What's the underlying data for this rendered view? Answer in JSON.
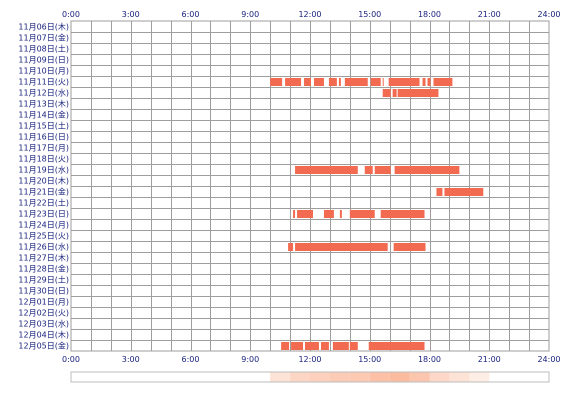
{
  "chart_data": {
    "type": "timeline",
    "title": "",
    "xlabel": "",
    "ylabel": "",
    "xlim": [
      0,
      24
    ],
    "x_ticks": [
      "0:00",
      "3:00",
      "6:00",
      "9:00",
      "12:00",
      "15:00",
      "18:00",
      "21:00",
      "24:00"
    ],
    "grid": true,
    "bar_color": "#f26a4f",
    "bar_color_light": "#f4835a",
    "grid_color": "#9e9e9e",
    "label_color": "#1a237e",
    "rows": [
      {
        "label": "11月06日(木)",
        "intervals": []
      },
      {
        "label": "11月07日(金)",
        "intervals": []
      },
      {
        "label": "11月08日(土)",
        "intervals": []
      },
      {
        "label": "11月09日(日)",
        "intervals": []
      },
      {
        "label": "11月10日(月)",
        "intervals": []
      },
      {
        "label": "11月11日(火)",
        "intervals": [
          [
            10.0,
            10.6
          ],
          [
            10.75,
            11.55
          ],
          [
            11.7,
            12.05
          ],
          [
            12.2,
            12.7
          ],
          [
            12.95,
            13.35
          ],
          [
            13.45,
            13.55
          ],
          [
            13.75,
            14.9
          ],
          [
            15.05,
            15.55
          ],
          [
            15.65,
            15.7
          ],
          [
            15.95,
            17.5
          ],
          [
            17.65,
            17.8
          ],
          [
            17.9,
            18.05
          ],
          [
            18.2,
            19.15
          ]
        ]
      },
      {
        "label": "11月12日(水)",
        "intervals": [
          [
            15.65,
            16.05
          ],
          [
            16.15,
            16.35
          ],
          [
            16.4,
            18.45
          ]
        ]
      },
      {
        "label": "11月13日(木)",
        "intervals": []
      },
      {
        "label": "11月14日(金)",
        "intervals": []
      },
      {
        "label": "11月15日(土)",
        "intervals": []
      },
      {
        "label": "11月16日(日)",
        "intervals": []
      },
      {
        "label": "11月17日(月)",
        "intervals": []
      },
      {
        "label": "11月18日(火)",
        "intervals": []
      },
      {
        "label": "11月19日(水)",
        "intervals": [
          [
            11.25,
            14.4
          ],
          [
            14.75,
            15.15
          ],
          [
            15.25,
            16.05
          ],
          [
            16.25,
            19.5
          ]
        ]
      },
      {
        "label": "11月20日(木)",
        "intervals": []
      },
      {
        "label": "11月21日(金)",
        "intervals": [
          [
            18.35,
            18.65
          ],
          [
            18.75,
            20.7
          ]
        ]
      },
      {
        "label": "11月22日(土)",
        "intervals": []
      },
      {
        "label": "11月23日(日)",
        "intervals": [
          [
            11.15,
            11.25
          ],
          [
            11.35,
            12.15
          ],
          [
            12.7,
            13.2
          ],
          [
            13.5,
            13.6
          ],
          [
            14.0,
            15.25
          ],
          [
            15.55,
            17.75
          ]
        ]
      },
      {
        "label": "11月24日(月)",
        "intervals": []
      },
      {
        "label": "11月25日(火)",
        "intervals": []
      },
      {
        "label": "11月26日(水)",
        "intervals": [
          [
            10.9,
            11.15
          ],
          [
            11.25,
            15.9
          ],
          [
            16.2,
            17.8
          ]
        ]
      },
      {
        "label": "11月27日(木)",
        "intervals": []
      },
      {
        "label": "11月28日(金)",
        "intervals": []
      },
      {
        "label": "11月29日(土)",
        "intervals": []
      },
      {
        "label": "11月30日(日)",
        "intervals": []
      },
      {
        "label": "12月01日(月)",
        "intervals": []
      },
      {
        "label": "12月02日(火)",
        "intervals": []
      },
      {
        "label": "12月03日(水)",
        "intervals": []
      },
      {
        "label": "12月04日(木)",
        "intervals": []
      },
      {
        "label": "12月05日(金)",
        "intervals": [
          [
            10.55,
            10.95
          ],
          [
            11.05,
            11.65
          ],
          [
            11.75,
            12.45
          ],
          [
            12.55,
            12.95
          ],
          [
            13.15,
            13.95
          ],
          [
            14.0,
            14.4
          ],
          [
            14.95,
            17.75
          ]
        ]
      }
    ],
    "heat_strip": [
      {
        "range": [
          10.0,
          11.0
        ],
        "color": "#fde3d6"
      },
      {
        "range": [
          11.0,
          12.0
        ],
        "color": "#fcd5c4"
      },
      {
        "range": [
          12.0,
          13.0
        ],
        "color": "#fcd0bd"
      },
      {
        "range": [
          13.0,
          14.0
        ],
        "color": "#fccbb6"
      },
      {
        "range": [
          14.0,
          15.0
        ],
        "color": "#fcc9b3"
      },
      {
        "range": [
          15.0,
          16.0
        ],
        "color": "#fcc0a6"
      },
      {
        "range": [
          16.0,
          17.0
        ],
        "color": "#fbbb9f"
      },
      {
        "range": [
          17.0,
          18.0
        ],
        "color": "#fcc5ad"
      },
      {
        "range": [
          18.0,
          19.0
        ],
        "color": "#fdd7c7"
      },
      {
        "range": [
          19.0,
          20.0
        ],
        "color": "#fde3d6"
      },
      {
        "range": [
          20.0,
          21.0
        ],
        "color": "#feede5"
      }
    ]
  }
}
